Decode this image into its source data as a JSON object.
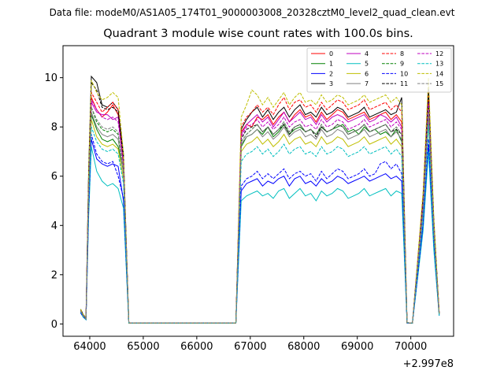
{
  "figure": {
    "suptitle": "Data file: modeM0/AS1A05_174T01_9000003008_20328cztM0_level2_quad_clean.evt"
  },
  "chart_data": {
    "type": "line",
    "title": "Quadrant 3 module wise count rates with 100.0s bins.",
    "xlabel": "",
    "ylabel": "",
    "x_offset_label": "+2.997e8",
    "x_ticks": [
      64000,
      65000,
      66000,
      67000,
      68000,
      69000,
      70000
    ],
    "x_tick_labels": [
      "64000",
      "65000",
      "66000",
      "67000",
      "68000",
      "69000",
      "70000"
    ],
    "y_ticks": [
      0,
      2,
      4,
      6,
      8,
      10
    ],
    "y_tick_labels": [
      "0",
      "2",
      "4",
      "6",
      "8",
      "10"
    ],
    "xlim": [
      63500,
      70800
    ],
    "ylim": [
      -0.5,
      11.3
    ],
    "grid": false,
    "legend": {
      "placement": "top-right",
      "columns": 4
    },
    "x": [
      63830,
      63880,
      63930,
      63980,
      64030,
      64130,
      64230,
      64330,
      64430,
      64530,
      64630,
      64730,
      66730,
      66830,
      66930,
      67030,
      67130,
      67230,
      67330,
      67430,
      67530,
      67630,
      67730,
      67830,
      67930,
      68030,
      68130,
      68230,
      68330,
      68430,
      68530,
      68630,
      68730,
      68830,
      68930,
      69030,
      69130,
      69230,
      69330,
      69430,
      69530,
      69630,
      69730,
      69830,
      69930,
      70030,
      70130,
      70230,
      70330,
      70430,
      70530
    ],
    "series": [
      {
        "name": "0",
        "color": "#ff0000",
        "dash": false,
        "values": [
          0.55,
          0.35,
          0.22,
          5.8,
          9.2,
          8.7,
          8.4,
          8.6,
          8.9,
          8.5,
          6.5,
          0.03,
          0.03,
          7.8,
          8.1,
          8.0,
          8.4,
          8.3,
          8.5,
          8.1,
          8.4,
          8.6,
          8.2,
          8.5,
          8.7,
          8.4,
          8.5,
          8.2,
          8.6,
          8.3,
          8.5,
          8.7,
          8.6,
          8.3,
          8.4,
          8.5,
          8.6,
          8.3,
          8.4,
          8.5,
          8.6,
          8.3,
          8.5,
          8.2,
          0.05,
          0.03,
          2.5,
          5.0,
          9.2,
          4.0,
          0.45
        ]
      },
      {
        "name": "1",
        "color": "#008000",
        "dash": false,
        "values": [
          0.5,
          0.3,
          0.2,
          5.5,
          8.5,
          7.9,
          7.5,
          7.4,
          7.5,
          7.2,
          6.2,
          0.03,
          0.03,
          7.2,
          7.6,
          7.7,
          7.9,
          7.7,
          8.0,
          7.6,
          7.8,
          8.1,
          7.7,
          7.9,
          8.0,
          7.8,
          7.9,
          7.7,
          8.0,
          7.8,
          7.9,
          8.0,
          8.1,
          7.8,
          7.9,
          7.7,
          8.0,
          7.8,
          7.9,
          7.7,
          7.8,
          7.6,
          7.9,
          7.4,
          0.05,
          0.03,
          2.3,
          4.7,
          8.7,
          3.8,
          0.4
        ]
      },
      {
        "name": "2",
        "color": "#0000ff",
        "dash": false,
        "values": [
          0.45,
          0.28,
          0.18,
          4.6,
          7.5,
          6.7,
          6.5,
          6.4,
          6.5,
          6.4,
          5.0,
          0.03,
          0.03,
          5.4,
          5.7,
          5.8,
          5.9,
          5.6,
          5.8,
          5.7,
          5.9,
          6.0,
          5.6,
          5.9,
          6.0,
          5.7,
          5.8,
          5.6,
          5.9,
          5.7,
          5.8,
          6.0,
          5.9,
          5.7,
          5.8,
          5.9,
          6.0,
          5.8,
          5.9,
          6.0,
          6.1,
          5.9,
          6.0,
          5.8,
          0.04,
          0.03,
          2.0,
          4.0,
          7.3,
          3.2,
          0.35
        ]
      },
      {
        "name": "3",
        "color": "#000000",
        "dash": false,
        "values": [
          0.6,
          0.38,
          0.24,
          6.3,
          10.05,
          9.8,
          8.9,
          8.8,
          9.0,
          8.7,
          6.9,
          0.03,
          0.03,
          7.9,
          8.3,
          8.6,
          8.8,
          8.4,
          8.7,
          8.3,
          8.6,
          8.8,
          8.4,
          8.7,
          8.9,
          8.5,
          8.6,
          8.4,
          8.8,
          8.5,
          8.6,
          8.8,
          8.7,
          8.4,
          8.5,
          8.6,
          8.8,
          8.4,
          8.5,
          8.6,
          8.7,
          8.5,
          8.6,
          9.2,
          0.05,
          0.03,
          2.6,
          5.2,
          9.6,
          4.2,
          0.45
        ]
      },
      {
        "name": "4",
        "color": "#bf00bf",
        "dash": false,
        "values": [
          0.55,
          0.35,
          0.22,
          5.7,
          9.0,
          8.6,
          8.5,
          8.5,
          8.3,
          8.4,
          6.4,
          0.03,
          0.03,
          7.7,
          8.1,
          8.3,
          8.5,
          8.2,
          8.4,
          8.0,
          8.3,
          8.6,
          8.2,
          8.4,
          8.6,
          8.3,
          8.4,
          8.1,
          8.5,
          8.2,
          8.4,
          8.5,
          8.4,
          8.2,
          8.3,
          8.4,
          8.5,
          8.2,
          8.3,
          8.5,
          8.4,
          8.2,
          8.4,
          8.0,
          0.05,
          0.03,
          2.5,
          4.9,
          9.0,
          3.9,
          0.45
        ]
      },
      {
        "name": "5",
        "color": "#00bfbf",
        "dash": false,
        "values": [
          0.45,
          0.27,
          0.17,
          4.4,
          7.2,
          6.2,
          5.8,
          5.6,
          5.7,
          5.5,
          4.7,
          0.03,
          0.03,
          5.0,
          5.2,
          5.3,
          5.4,
          5.2,
          5.3,
          5.1,
          5.4,
          5.5,
          5.1,
          5.3,
          5.5,
          5.2,
          5.3,
          5.0,
          5.4,
          5.2,
          5.3,
          5.5,
          5.4,
          5.1,
          5.2,
          5.3,
          5.5,
          5.2,
          5.3,
          5.4,
          5.5,
          5.2,
          5.4,
          5.3,
          0.04,
          0.03,
          1.9,
          3.8,
          7.0,
          3.0,
          0.33
        ]
      },
      {
        "name": "6",
        "color": "#bfbf00",
        "dash": false,
        "values": [
          0.5,
          0.3,
          0.2,
          5.4,
          8.3,
          7.6,
          7.3,
          7.2,
          7.3,
          7.1,
          5.9,
          0.03,
          0.03,
          7.0,
          7.3,
          7.4,
          7.6,
          7.3,
          7.5,
          7.2,
          7.4,
          7.7,
          7.3,
          7.5,
          7.6,
          7.3,
          7.4,
          7.2,
          7.6,
          7.3,
          7.4,
          7.6,
          7.5,
          7.2,
          7.3,
          7.4,
          7.6,
          7.3,
          7.4,
          7.5,
          7.6,
          7.3,
          7.5,
          7.2,
          0.05,
          0.03,
          2.2,
          4.5,
          8.3,
          3.6,
          0.4
        ]
      },
      {
        "name": "7",
        "color": "#808080",
        "dash": false,
        "values": [
          0.52,
          0.32,
          0.21,
          5.5,
          8.6,
          8.0,
          7.7,
          7.6,
          7.7,
          7.5,
          6.1,
          0.03,
          0.03,
          7.3,
          7.6,
          7.7,
          7.9,
          7.6,
          7.8,
          7.5,
          7.7,
          8.0,
          7.6,
          7.8,
          7.9,
          7.6,
          7.7,
          7.5,
          7.9,
          7.6,
          7.7,
          7.9,
          7.8,
          7.5,
          7.6,
          7.7,
          7.9,
          7.6,
          7.7,
          7.8,
          7.9,
          7.6,
          7.8,
          7.5,
          0.05,
          0.03,
          2.3,
          4.6,
          8.5,
          3.7,
          0.42
        ]
      },
      {
        "name": "8",
        "color": "#ff0000",
        "dash": true,
        "values": [
          0.55,
          0.36,
          0.23,
          5.9,
          9.4,
          9.0,
          8.6,
          8.8,
          9.0,
          8.7,
          6.6,
          0.03,
          0.03,
          8.0,
          8.4,
          8.6,
          8.9,
          8.6,
          8.8,
          8.5,
          8.9,
          9.2,
          8.7,
          9.0,
          9.1,
          8.8,
          8.9,
          8.6,
          9.0,
          8.7,
          8.9,
          9.1,
          9.0,
          8.7,
          8.8,
          8.9,
          9.1,
          8.7,
          8.8,
          8.9,
          9.0,
          8.7,
          8.9,
          8.6,
          0.05,
          0.03,
          2.6,
          5.2,
          9.4,
          4.1,
          0.45
        ]
      },
      {
        "name": "9",
        "color": "#008000",
        "dash": true,
        "values": [
          0.52,
          0.33,
          0.21,
          5.6,
          8.8,
          8.2,
          7.9,
          7.8,
          7.9,
          7.7,
          6.3,
          0.03,
          0.03,
          7.4,
          7.7,
          7.9,
          8.1,
          7.8,
          8.0,
          7.7,
          7.9,
          8.2,
          7.8,
          8.0,
          8.1,
          7.8,
          7.9,
          7.7,
          8.1,
          7.8,
          7.9,
          8.1,
          8.0,
          7.7,
          7.8,
          7.9,
          8.1,
          7.8,
          7.9,
          8.0,
          8.1,
          7.8,
          8.0,
          7.7,
          0.05,
          0.03,
          2.4,
          4.8,
          8.8,
          3.8,
          0.42
        ]
      },
      {
        "name": "10",
        "color": "#0000ff",
        "dash": true,
        "values": [
          0.46,
          0.29,
          0.19,
          4.7,
          7.7,
          6.9,
          6.6,
          6.5,
          6.6,
          6.0,
          5.1,
          0.03,
          0.03,
          5.6,
          5.9,
          6.0,
          6.2,
          5.9,
          6.1,
          5.9,
          6.1,
          6.3,
          5.9,
          6.1,
          6.2,
          6.0,
          6.1,
          5.8,
          6.2,
          5.9,
          6.1,
          6.3,
          6.2,
          5.9,
          6.0,
          6.1,
          6.3,
          6.0,
          6.1,
          6.5,
          6.6,
          6.3,
          6.5,
          6.1,
          0.04,
          0.03,
          2.0,
          4.1,
          7.5,
          3.3,
          0.35
        ]
      },
      {
        "name": "11",
        "color": "#000000",
        "dash": true,
        "values": [
          0.58,
          0.37,
          0.23,
          6.1,
          9.8,
          9.5,
          8.8,
          8.7,
          8.8,
          8.6,
          6.7,
          0.03,
          0.03,
          7.5,
          7.9,
          8.0,
          8.1,
          7.8,
          8.0,
          7.7,
          7.9,
          8.1,
          7.7,
          8.0,
          8.1,
          7.8,
          7.9,
          7.6,
          8.0,
          7.8,
          7.9,
          8.1,
          8.0,
          7.7,
          7.8,
          7.9,
          8.1,
          7.8,
          7.9,
          8.0,
          8.1,
          7.8,
          7.9,
          7.7,
          0.05,
          0.03,
          2.5,
          5.1,
          9.4,
          4.1,
          0.44
        ]
      },
      {
        "name": "12",
        "color": "#bf00bf",
        "dash": true,
        "values": [
          0.55,
          0.35,
          0.22,
          5.8,
          9.1,
          8.7,
          8.4,
          8.3,
          8.4,
          8.2,
          6.5,
          0.03,
          0.03,
          7.6,
          8.0,
          8.1,
          8.3,
          8.0,
          8.2,
          7.9,
          8.1,
          8.4,
          8.0,
          8.2,
          8.3,
          8.0,
          8.1,
          7.9,
          8.3,
          8.0,
          8.1,
          8.3,
          8.2,
          7.9,
          8.0,
          8.1,
          8.3,
          8.0,
          8.1,
          8.2,
          8.3,
          8.0,
          8.2,
          7.9,
          0.05,
          0.03,
          2.5,
          4.9,
          9.0,
          3.9,
          0.44
        ]
      },
      {
        "name": "13",
        "color": "#00bfbf",
        "dash": true,
        "values": [
          0.5,
          0.31,
          0.2,
          5.2,
          8.0,
          7.4,
          7.1,
          7.0,
          7.1,
          6.9,
          5.7,
          0.03,
          0.03,
          6.6,
          6.9,
          7.0,
          7.2,
          6.9,
          7.1,
          6.8,
          7.0,
          7.3,
          6.9,
          7.1,
          7.2,
          6.9,
          7.0,
          6.8,
          7.2,
          6.9,
          7.0,
          7.2,
          7.1,
          6.8,
          6.9,
          7.0,
          7.2,
          6.9,
          7.0,
          7.1,
          7.2,
          6.9,
          7.1,
          6.8,
          0.05,
          0.03,
          2.2,
          4.4,
          8.1,
          3.5,
          0.38
        ]
      },
      {
        "name": "14",
        "color": "#bfbf00",
        "dash": true,
        "values": [
          0.6,
          0.38,
          0.24,
          6.2,
          9.9,
          9.4,
          9.1,
          9.2,
          9.4,
          9.2,
          6.9,
          0.03,
          0.03,
          8.4,
          8.9,
          9.5,
          9.3,
          8.9,
          9.2,
          8.8,
          9.1,
          9.4,
          8.9,
          9.2,
          9.4,
          9.0,
          9.1,
          8.9,
          9.3,
          9.0,
          9.1,
          9.3,
          9.2,
          8.9,
          9.0,
          9.1,
          9.3,
          9.0,
          9.1,
          9.2,
          9.3,
          9.0,
          9.2,
          8.9,
          0.05,
          0.03,
          2.7,
          5.4,
          10.0,
          4.3,
          0.47
        ]
      },
      {
        "name": "15",
        "color": "#808080",
        "dash": true,
        "values": [
          0.53,
          0.33,
          0.21,
          5.6,
          8.8,
          8.3,
          8.0,
          7.9,
          8.0,
          7.8,
          6.3,
          0.03,
          0.03,
          7.4,
          7.7,
          7.9,
          8.1,
          7.8,
          8.0,
          7.7,
          7.9,
          8.2,
          7.8,
          8.0,
          8.1,
          7.8,
          7.9,
          7.7,
          8.1,
          7.8,
          7.9,
          8.1,
          8.0,
          7.7,
          7.8,
          7.9,
          8.1,
          7.8,
          7.9,
          8.0,
          8.1,
          7.8,
          8.0,
          7.7,
          0.05,
          0.03,
          2.4,
          4.7,
          8.7,
          3.8,
          0.42
        ]
      }
    ]
  }
}
